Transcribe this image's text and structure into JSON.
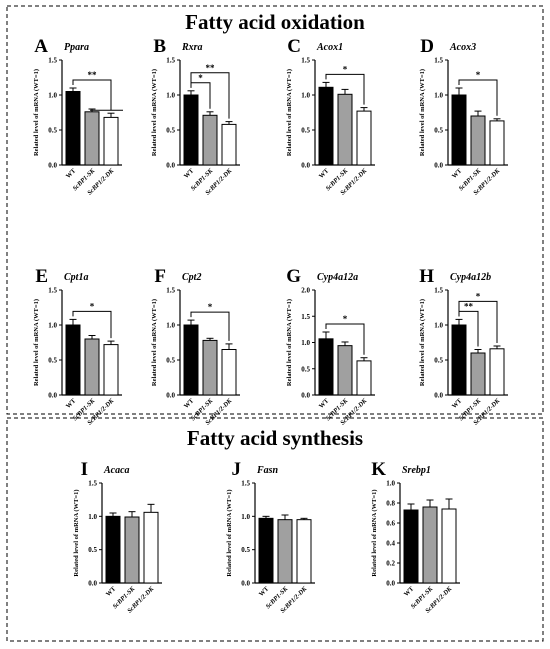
{
  "sections": [
    {
      "title": "Fatty acid oxidation"
    },
    {
      "title": "Fatty acid synthesis"
    }
  ],
  "ylabel": "Related level of mRNA (WT=1)",
  "categories": [
    "WT",
    "ScBP1-SK",
    "ScBP1/2-DK"
  ],
  "colors": {
    "WT": "#000000",
    "ScBP1-SK": "#a0a0a0",
    "ScBP1/2-DK": "#ffffff"
  },
  "chart_data": [
    {
      "type": "bar",
      "letter": "A",
      "title": "Ppara",
      "categories": [
        "WT",
        "ScBP1-SK",
        "ScBP1/2-DK"
      ],
      "values": [
        1.05,
        0.76,
        0.68
      ],
      "errors": [
        0.05,
        0.04,
        0.06
      ],
      "ylim": [
        0,
        1.5
      ],
      "yticks": [
        "0.0",
        "0.5",
        "1.0",
        "1.5"
      ],
      "significance": [
        {
          "from": 0,
          "to": 2,
          "label": "**",
          "grouped": true
        }
      ]
    },
    {
      "type": "bar",
      "letter": "B",
      "title": "Rxra",
      "categories": [
        "WT",
        "ScBP1-SK",
        "ScBP1/2-DK"
      ],
      "values": [
        1.0,
        0.71,
        0.58
      ],
      "errors": [
        0.06,
        0.05,
        0.04
      ],
      "ylim": [
        0,
        1.5
      ],
      "yticks": [
        "0.0",
        "0.5",
        "1.0",
        "1.5"
      ],
      "significance": [
        {
          "from": 0,
          "to": 1,
          "label": "*"
        },
        {
          "from": 0,
          "to": 2,
          "label": "**"
        }
      ]
    },
    {
      "type": "bar",
      "letter": "C",
      "title": "Acox1",
      "categories": [
        "WT",
        "ScBP1-SK",
        "ScBP1/2-DK"
      ],
      "values": [
        1.11,
        1.01,
        0.77
      ],
      "errors": [
        0.07,
        0.07,
        0.05
      ],
      "ylim": [
        0,
        1.5
      ],
      "yticks": [
        "0.0",
        "0.5",
        "1.0",
        "1.5"
      ],
      "significance": [
        {
          "from": 0,
          "to": 2,
          "label": "*"
        }
      ]
    },
    {
      "type": "bar",
      "letter": "D",
      "title": "Acox3",
      "categories": [
        "WT",
        "ScBP1-SK",
        "ScBP1/2-DK"
      ],
      "values": [
        1.0,
        0.7,
        0.63
      ],
      "errors": [
        0.1,
        0.07,
        0.03
      ],
      "ylim": [
        0,
        1.5
      ],
      "yticks": [
        "0.0",
        "0.5",
        "1.0",
        "1.5"
      ],
      "significance": [
        {
          "from": 0,
          "to": 2,
          "label": "*"
        }
      ]
    },
    {
      "type": "bar",
      "letter": "E",
      "title": "Cpt1a",
      "categories": [
        "WT",
        "ScBP1-SK",
        "ScBP1/2-DK"
      ],
      "values": [
        1.0,
        0.8,
        0.72
      ],
      "errors": [
        0.08,
        0.05,
        0.05
      ],
      "ylim": [
        0,
        1.5
      ],
      "yticks": [
        "0.0",
        "0.5",
        "1.0",
        "1.5"
      ],
      "significance": [
        {
          "from": 0,
          "to": 2,
          "label": "*"
        }
      ]
    },
    {
      "type": "bar",
      "letter": "F",
      "title": "Cpt2",
      "categories": [
        "WT",
        "ScBP1-SK",
        "ScBP1/2-DK"
      ],
      "values": [
        1.0,
        0.78,
        0.65
      ],
      "errors": [
        0.07,
        0.03,
        0.08
      ],
      "ylim": [
        0,
        1.5
      ],
      "yticks": [
        "0.0",
        "0.5",
        "1.0",
        "1.5"
      ],
      "significance": [
        {
          "from": 0,
          "to": 2,
          "label": "*"
        }
      ]
    },
    {
      "type": "bar",
      "letter": "G",
      "title": "Cyp4a12a",
      "categories": [
        "WT",
        "ScBP1-SK",
        "ScBP1/2-DK"
      ],
      "values": [
        1.07,
        0.94,
        0.65
      ],
      "errors": [
        0.13,
        0.07,
        0.06
      ],
      "ylim": [
        0,
        2.0
      ],
      "yticks": [
        "0.0",
        "0.5",
        "1.0",
        "1.5",
        "2.0"
      ],
      "significance": [
        {
          "from": 0,
          "to": 2,
          "label": "*"
        }
      ]
    },
    {
      "type": "bar",
      "letter": "H",
      "title": "Cyp4a12b",
      "categories": [
        "WT",
        "ScBP1-SK",
        "ScBP1/2-DK"
      ],
      "values": [
        1.0,
        0.6,
        0.66
      ],
      "errors": [
        0.08,
        0.05,
        0.04
      ],
      "ylim": [
        0,
        1.5
      ],
      "yticks": [
        "0.0",
        "0.5",
        "1.0",
        "1.5"
      ],
      "significance": [
        {
          "from": 0,
          "to": 1,
          "label": "**"
        },
        {
          "from": 0,
          "to": 2,
          "label": "*"
        }
      ]
    },
    {
      "type": "bar",
      "letter": "I",
      "title": "Acaca",
      "categories": [
        "WT",
        "ScBP1-SK",
        "ScBP1/2-DK"
      ],
      "values": [
        1.0,
        0.99,
        1.06
      ],
      "errors": [
        0.05,
        0.08,
        0.12
      ],
      "ylim": [
        0,
        1.5
      ],
      "yticks": [
        "0.0",
        "0.5",
        "1.0",
        "1.5"
      ],
      "significance": []
    },
    {
      "type": "bar",
      "letter": "J",
      "title": "Fasn",
      "categories": [
        "WT",
        "ScBP1-SK",
        "ScBP1/2-DK"
      ],
      "values": [
        0.97,
        0.95,
        0.95
      ],
      "errors": [
        0.03,
        0.07,
        0.02
      ],
      "ylim": [
        0,
        1.5
      ],
      "yticks": [
        "0.0",
        "0.5",
        "1.0",
        "1.5"
      ],
      "significance": []
    },
    {
      "type": "bar",
      "letter": "K",
      "title": "Srebp1",
      "categories": [
        "WT",
        "ScBP1-SK",
        "ScBP1/2-DK"
      ],
      "values": [
        0.73,
        0.76,
        0.74
      ],
      "errors": [
        0.06,
        0.07,
        0.1
      ],
      "ylim": [
        0,
        1.0
      ],
      "yticks": [
        "0.0",
        "0.2",
        "0.4",
        "0.6",
        "0.8",
        "1.0"
      ],
      "significance": []
    }
  ]
}
